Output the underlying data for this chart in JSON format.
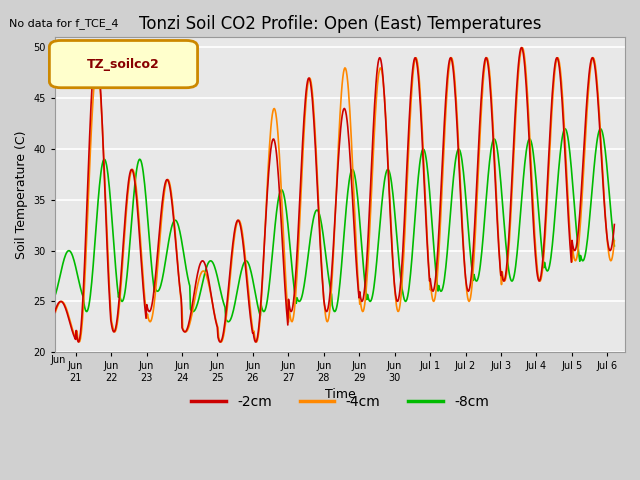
{
  "title": "Tonzi Soil CO2 Profile: Open (East) Temperatures",
  "no_data_text": "No data for f_TCE_4",
  "legend_label_text": "TZ_soilco2",
  "xlabel": "Time",
  "ylabel": "Soil Temperature (C)",
  "ylim": [
    20,
    51
  ],
  "yticks": [
    20,
    25,
    30,
    35,
    40,
    45,
    50
  ],
  "bg_color": "#e8e8e8",
  "fig_bg_color": "#d0d0d0",
  "line_colors": {
    "2cm": "#cc0000",
    "4cm": "#ff8800",
    "8cm": "#00bb00"
  },
  "legend_items": [
    "-2cm",
    "-4cm",
    "-8cm"
  ],
  "legend_colors": [
    "#cc0000",
    "#ff8800",
    "#00bb00"
  ],
  "tick_labels": [
    "Jun 21",
    "Jun 22",
    "Jun 23",
    "Jun 24",
    "Jun 25",
    "Jun 26",
    "Jun 27",
    "Jun 28",
    "Jun 29",
    "Jun 30",
    "Jul 1",
    "Jul 2",
    "Jul 3",
    "Jul 4",
    "Jul 5",
    "Jul 6"
  ],
  "title_fontsize": 12,
  "axis_fontsize": 9,
  "tick_fontsize": 8,
  "legend_box_color": "#ffffcc",
  "legend_box_edge": "#cc8800",
  "legend_text_color": "#880000"
}
